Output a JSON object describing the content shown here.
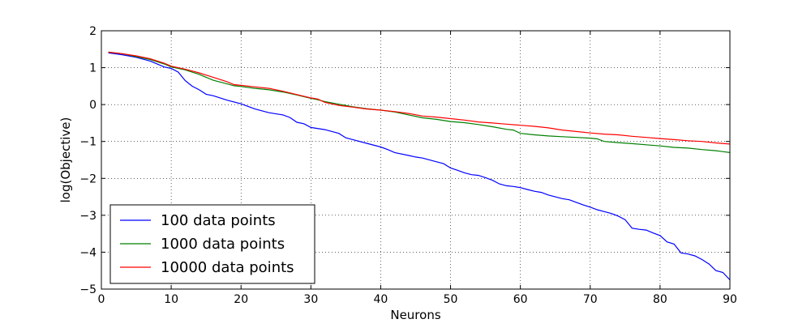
{
  "chart_data": {
    "type": "line",
    "title": "",
    "xlabel": "Neurons",
    "ylabel": "log(Objective)",
    "xlim": [
      0,
      90
    ],
    "ylim": [
      -5,
      2
    ],
    "xticks": [
      0,
      10,
      20,
      30,
      40,
      50,
      60,
      70,
      80,
      90
    ],
    "yticks": [
      -5,
      -4,
      -3,
      -2,
      -1,
      0,
      1,
      2
    ],
    "xtick_labels": [
      "0",
      "10",
      "20",
      "30",
      "40",
      "50",
      "60",
      "70",
      "80",
      "90"
    ],
    "ytick_labels": [
      "−5",
      "−4",
      "−3",
      "−2",
      "−1",
      "0",
      "1",
      "2"
    ],
    "grid": true,
    "legend_position": "lower-left",
    "series": [
      {
        "name": "100 data points",
        "color": "#0000ff",
        "x": [
          1,
          3,
          5,
          7,
          9,
          10,
          11,
          12,
          13,
          14,
          15,
          16,
          18,
          20,
          22,
          24,
          26,
          27,
          28,
          29,
          30,
          32,
          34,
          35,
          36,
          38,
          40,
          41,
          42,
          44,
          45,
          46,
          48,
          49,
          50,
          51,
          52,
          53,
          54,
          55,
          56,
          57,
          58,
          59,
          60,
          61,
          62,
          63,
          64,
          65,
          66,
          67,
          68,
          69,
          70,
          71,
          72,
          73,
          74,
          75,
          76,
          77,
          78,
          79,
          80,
          81,
          82,
          83,
          84,
          85,
          86,
          87,
          88,
          89,
          90
        ],
        "values": [
          1.4,
          1.35,
          1.28,
          1.18,
          1.02,
          0.98,
          0.88,
          0.65,
          0.5,
          0.4,
          0.28,
          0.24,
          0.12,
          0.02,
          -0.12,
          -0.22,
          -0.28,
          -0.35,
          -0.48,
          -0.52,
          -0.62,
          -0.68,
          -0.78,
          -0.9,
          -0.95,
          -1.05,
          -1.15,
          -1.22,
          -1.3,
          -1.38,
          -1.42,
          -1.45,
          -1.55,
          -1.6,
          -1.72,
          -1.78,
          -1.85,
          -1.9,
          -1.92,
          -1.98,
          -2.05,
          -2.15,
          -2.2,
          -2.22,
          -2.25,
          -2.3,
          -2.35,
          -2.38,
          -2.45,
          -2.5,
          -2.55,
          -2.58,
          -2.65,
          -2.72,
          -2.78,
          -2.85,
          -2.9,
          -2.95,
          -3.02,
          -3.12,
          -3.35,
          -3.38,
          -3.4,
          -3.48,
          -3.55,
          -3.72,
          -3.78,
          -4.02,
          -4.05,
          -4.1,
          -4.2,
          -4.32,
          -4.5,
          -4.55,
          -4.75
        ]
      },
      {
        "name": "1000 data points",
        "color": "#008000",
        "x": [
          1,
          3,
          5,
          7,
          9,
          10,
          12,
          14,
          16,
          18,
          19,
          20,
          22,
          24,
          26,
          28,
          30,
          31,
          32,
          34,
          36,
          38,
          40,
          42,
          44,
          46,
          48,
          50,
          52,
          54,
          56,
          58,
          59,
          60,
          62,
          64,
          66,
          68,
          70,
          71,
          72,
          74,
          76,
          78,
          80,
          82,
          84,
          86,
          88,
          90
        ],
        "values": [
          1.42,
          1.38,
          1.3,
          1.22,
          1.1,
          1.02,
          0.94,
          0.82,
          0.66,
          0.56,
          0.51,
          0.49,
          0.44,
          0.4,
          0.34,
          0.26,
          0.17,
          0.13,
          0.08,
          0.01,
          -0.06,
          -0.11,
          -0.15,
          -0.2,
          -0.28,
          -0.36,
          -0.4,
          -0.46,
          -0.49,
          -0.54,
          -0.6,
          -0.67,
          -0.69,
          -0.78,
          -0.82,
          -0.85,
          -0.87,
          -0.89,
          -0.91,
          -0.93,
          -1.0,
          -1.03,
          -1.06,
          -1.09,
          -1.12,
          -1.16,
          -1.18,
          -1.22,
          -1.25,
          -1.3
        ]
      },
      {
        "name": "10000 data points",
        "color": "#ff0000",
        "x": [
          1,
          3,
          5,
          7,
          9,
          10,
          12,
          14,
          16,
          18,
          19,
          20,
          22,
          24,
          26,
          28,
          30,
          31,
          32,
          34,
          36,
          38,
          40,
          42,
          44,
          46,
          48,
          50,
          52,
          54,
          56,
          58,
          60,
          62,
          64,
          66,
          68,
          70,
          72,
          74,
          76,
          78,
          80,
          82,
          84,
          86,
          88,
          90
        ],
        "values": [
          1.42,
          1.38,
          1.32,
          1.24,
          1.12,
          1.04,
          0.96,
          0.86,
          0.74,
          0.62,
          0.54,
          0.52,
          0.48,
          0.44,
          0.36,
          0.27,
          0.18,
          0.15,
          0.06,
          -0.02,
          -0.07,
          -0.12,
          -0.15,
          -0.19,
          -0.24,
          -0.31,
          -0.34,
          -0.38,
          -0.42,
          -0.47,
          -0.5,
          -0.53,
          -0.56,
          -0.59,
          -0.63,
          -0.69,
          -0.73,
          -0.77,
          -0.8,
          -0.82,
          -0.86,
          -0.89,
          -0.92,
          -0.95,
          -0.98,
          -1.0,
          -1.04,
          -1.07
        ]
      }
    ]
  }
}
